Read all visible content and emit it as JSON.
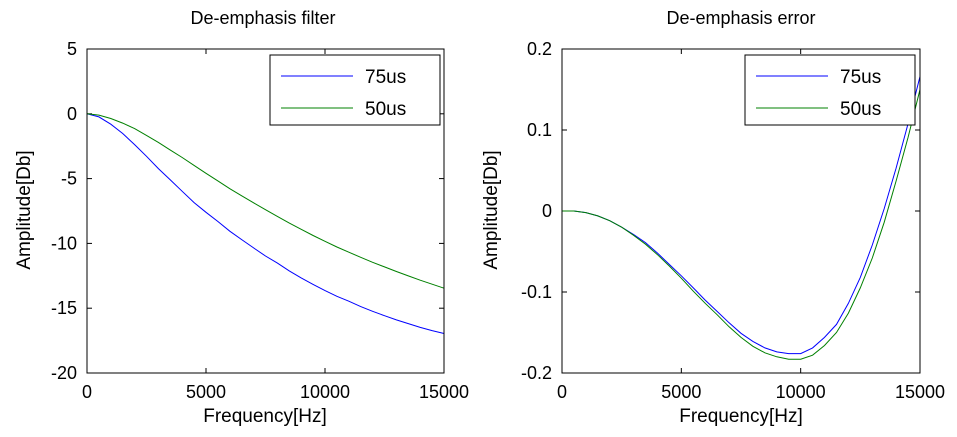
{
  "chart_data": [
    {
      "type": "line",
      "title": "De-emphasis filter",
      "xlabel": "Frequency[Hz]",
      "ylabel": "Amplitude[Db]",
      "xlim": [
        0,
        15000
      ],
      "ylim": [
        -20,
        5
      ],
      "xticks": [
        "0",
        "5000",
        "10000",
        "15000"
      ],
      "yticks": [
        "5",
        "0",
        "-5",
        "-10",
        "-15",
        "-20"
      ],
      "grid": false,
      "legend_position": "top-right",
      "x": [
        0,
        500,
        1000,
        1500,
        2000,
        2500,
        3000,
        3500,
        4000,
        4500,
        5000,
        5500,
        6000,
        6500,
        7000,
        7500,
        8000,
        8500,
        9000,
        9500,
        10000,
        10500,
        11000,
        11500,
        12000,
        12500,
        13000,
        13500,
        14000,
        14500,
        15000
      ],
      "series": [
        {
          "name": "75us",
          "color": "#0000ff",
          "values": [
            0,
            -0.24,
            -0.8,
            -1.52,
            -2.38,
            -3.28,
            -4.23,
            -5.1,
            -5.98,
            -6.85,
            -7.6,
            -8.31,
            -9.06,
            -9.71,
            -10.35,
            -10.97,
            -11.52,
            -12.12,
            -12.66,
            -13.16,
            -13.64,
            -14.08,
            -14.46,
            -14.88,
            -15.24,
            -15.58,
            -15.9,
            -16.19,
            -16.48,
            -16.73,
            -16.95
          ]
        },
        {
          "name": "50us",
          "color": "#008000",
          "values": [
            0,
            -0.1,
            -0.36,
            -0.72,
            -1.14,
            -1.67,
            -2.21,
            -2.8,
            -3.37,
            -3.98,
            -4.59,
            -5.18,
            -5.78,
            -6.33,
            -6.87,
            -7.4,
            -7.92,
            -8.43,
            -8.91,
            -9.39,
            -9.84,
            -10.28,
            -10.68,
            -11.07,
            -11.46,
            -11.81,
            -12.17,
            -12.51,
            -12.84,
            -13.15,
            -13.46
          ]
        }
      ]
    },
    {
      "type": "line",
      "title": "De-emphasis error",
      "xlabel": "Frequency[Hz]",
      "ylabel": "Amplitude[Db]",
      "xlim": [
        0,
        15000
      ],
      "ylim": [
        -0.2,
        0.2
      ],
      "xticks": [
        "0",
        "5000",
        "10000",
        "15000"
      ],
      "yticks": [
        "0.2",
        "0.1",
        "0",
        "-0.1",
        "-0.2"
      ],
      "grid": false,
      "legend_position": "top-right",
      "x": [
        0,
        500,
        1000,
        1500,
        2000,
        2500,
        3000,
        3500,
        4000,
        4500,
        5000,
        5500,
        6000,
        6500,
        7000,
        7500,
        8000,
        8500,
        9000,
        9500,
        10000,
        10500,
        11000,
        11500,
        12000,
        12500,
        13000,
        13500,
        14000,
        14500,
        15000
      ],
      "series": [
        {
          "name": "75us",
          "color": "#0000ff",
          "values": [
            0,
            0,
            -0.002,
            -0.006,
            -0.012,
            -0.02,
            -0.029,
            -0.039,
            -0.052,
            -0.066,
            -0.08,
            -0.095,
            -0.11,
            -0.124,
            -0.138,
            -0.151,
            -0.161,
            -0.169,
            -0.174,
            -0.176,
            -0.176,
            -0.169,
            -0.156,
            -0.14,
            -0.114,
            -0.082,
            -0.042,
            0.003,
            0.053,
            0.108,
            0.166
          ]
        },
        {
          "name": "50us",
          "color": "#008000",
          "values": [
            0,
            0,
            -0.002,
            -0.006,
            -0.012,
            -0.02,
            -0.03,
            -0.041,
            -0.054,
            -0.068,
            -0.083,
            -0.099,
            -0.114,
            -0.128,
            -0.143,
            -0.156,
            -0.167,
            -0.175,
            -0.18,
            -0.183,
            -0.183,
            -0.178,
            -0.166,
            -0.15,
            -0.126,
            -0.095,
            -0.058,
            -0.014,
            0.037,
            0.091,
            0.15
          ]
        }
      ]
    }
  ]
}
